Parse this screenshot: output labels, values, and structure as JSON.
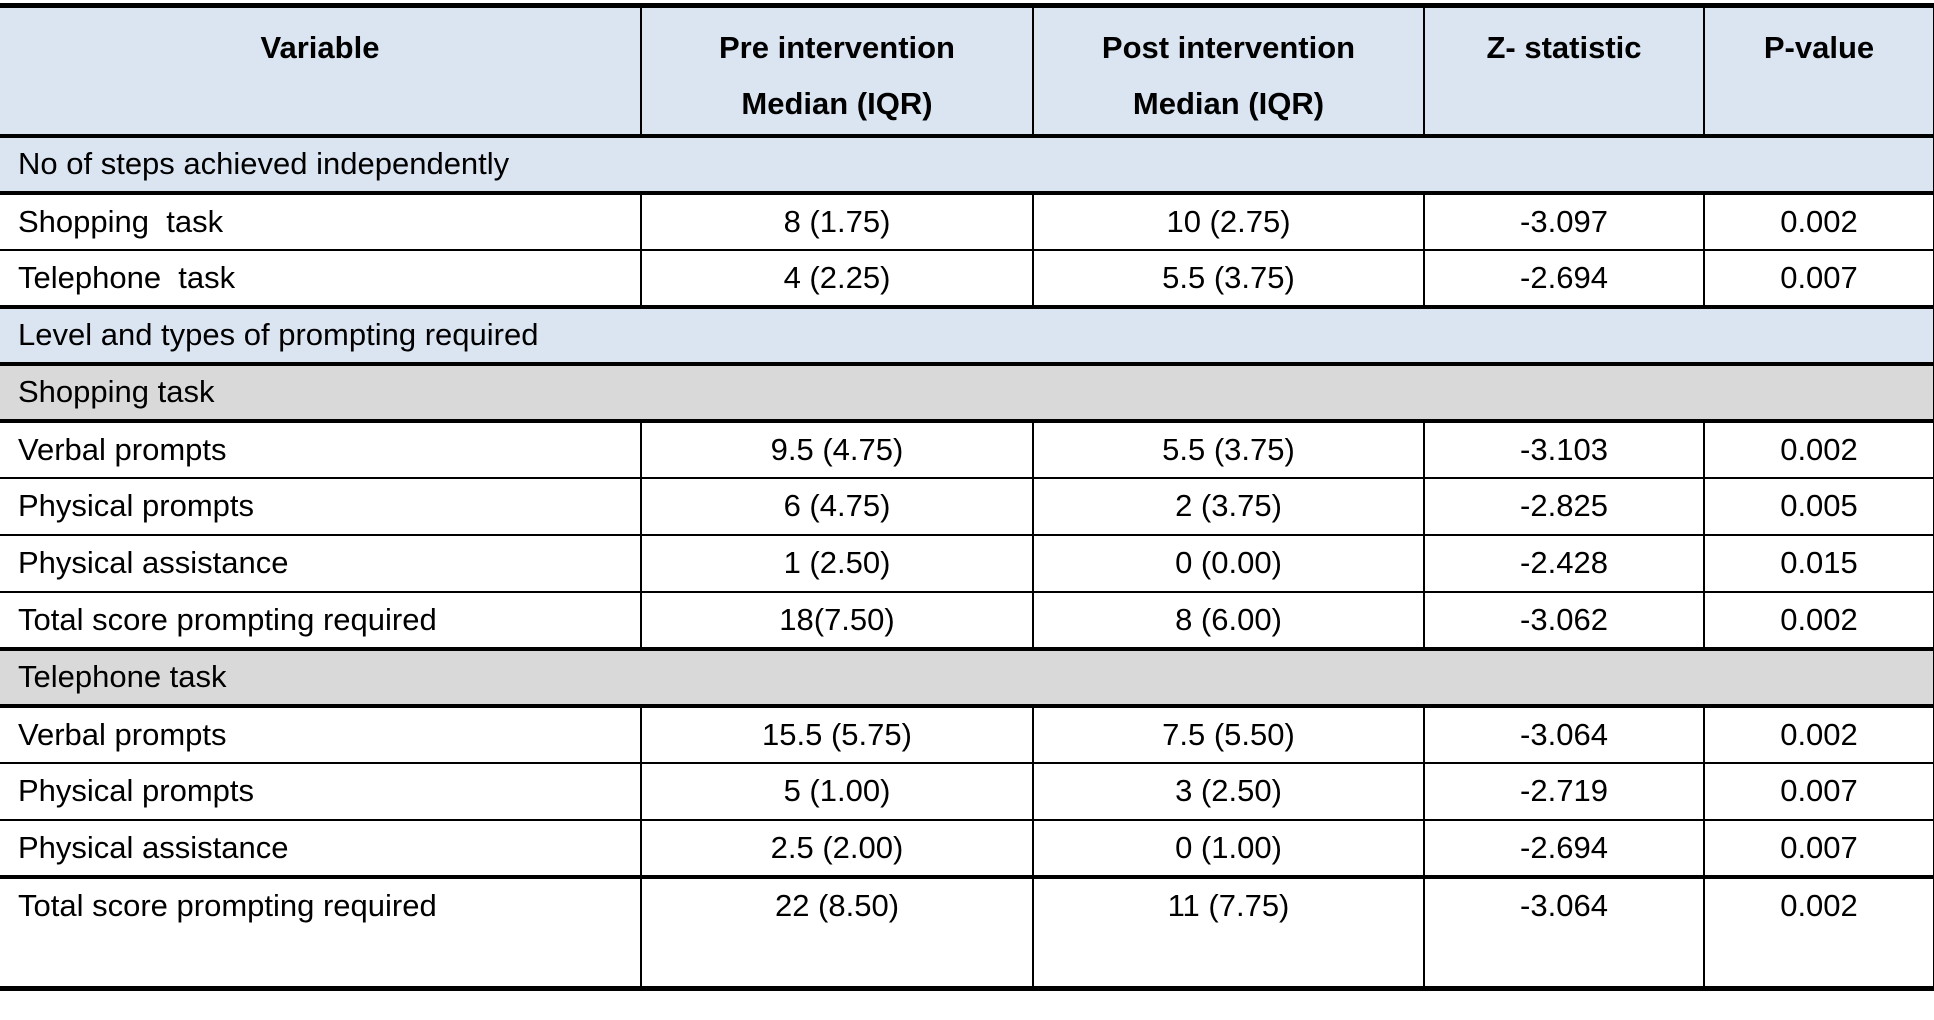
{
  "colors": {
    "section_header_blue": "#dbe5f1",
    "subsection_gray": "#d9d9d9",
    "border_black": "#000000"
  },
  "table": {
    "header": {
      "variable": "Variable",
      "pre": "Pre intervention\nMedian (IQR)",
      "post": "Post intervention\nMedian (IQR)",
      "z": "Z- statistic",
      "p": "P-value"
    },
    "rows": [
      {
        "type": "section",
        "shade": "blue",
        "label": "No of steps achieved independently"
      },
      {
        "type": "data",
        "variable": "Shopping  task",
        "pre": "8 (1.75)",
        "post": "10 (2.75)",
        "z": "-3.097",
        "p": "0.002"
      },
      {
        "type": "data",
        "variable": "Telephone  task",
        "pre": "4 (2.25)",
        "post": "5.5 (3.75)",
        "z": "-2.694",
        "p": "0.007"
      },
      {
        "type": "section",
        "shade": "blue",
        "label": "Level and types of prompting required"
      },
      {
        "type": "section",
        "shade": "gray",
        "label": "Shopping task"
      },
      {
        "type": "data",
        "variable": "Verbal prompts",
        "pre": "9.5 (4.75)",
        "post": "5.5 (3.75)",
        "z": "-3.103",
        "p": "0.002"
      },
      {
        "type": "data",
        "variable": "Physical prompts",
        "pre": "6 (4.75)",
        "post": "2 (3.75)",
        "z": "-2.825",
        "p": "0.005"
      },
      {
        "type": "data",
        "variable": "Physical assistance",
        "pre": "1 (2.50)",
        "post": "0 (0.00)",
        "z": "-2.428",
        "p": "0.015"
      },
      {
        "type": "data",
        "variable": "Total score prompting required",
        "pre": "18(7.50)",
        "post": "8 (6.00)",
        "z": "-3.062",
        "p": "0.002"
      },
      {
        "type": "section",
        "shade": "gray",
        "label": "Telephone task"
      },
      {
        "type": "data",
        "variable": "Verbal prompts",
        "pre": "15.5 (5.75)",
        "post": "7.5 (5.50)",
        "z": "-3.064",
        "p": "0.002"
      },
      {
        "type": "data",
        "variable": "Physical prompts",
        "pre": "5 (1.00)",
        "post": "3 (2.50)",
        "z": "-2.719",
        "p": "0.007"
      },
      {
        "type": "data",
        "variable": "Physical assistance",
        "pre": "2.5 (2.00)",
        "post": "0 (1.00)",
        "z": "-2.694",
        "p": "0.007"
      },
      {
        "type": "data",
        "variable": "Total score prompting required",
        "pre": "22 (8.50)",
        "post": "11 (7.75)",
        "z": "-3.064",
        "p": "0.002",
        "tall": true
      }
    ]
  }
}
